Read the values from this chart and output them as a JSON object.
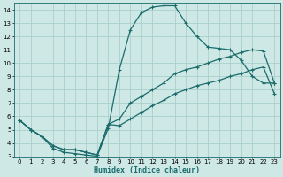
{
  "xlabel": "Humidex (Indice chaleur)",
  "xlim": [
    -0.5,
    23.5
  ],
  "ylim": [
    3,
    14.5
  ],
  "xticks": [
    0,
    1,
    2,
    3,
    4,
    5,
    6,
    7,
    8,
    9,
    10,
    11,
    12,
    13,
    14,
    15,
    16,
    17,
    18,
    19,
    20,
    21,
    22,
    23
  ],
  "yticks": [
    3,
    4,
    5,
    6,
    7,
    8,
    9,
    10,
    11,
    12,
    13,
    14
  ],
  "bg_color": "#cde8e5",
  "grid_color": "#aacfcb",
  "line_color": "#1a6b6b",
  "line1_x": [
    0,
    1,
    2,
    3,
    4,
    5,
    6,
    7,
    8,
    9,
    10,
    11,
    12,
    13,
    14,
    15,
    16,
    17,
    18,
    19,
    20,
    21,
    22,
    23
  ],
  "line1_y": [
    5.7,
    5.0,
    4.5,
    3.6,
    3.3,
    3.2,
    3.1,
    3.0,
    5.1,
    9.5,
    12.5,
    13.8,
    14.2,
    14.3,
    14.3,
    13.0,
    12.0,
    11.2,
    11.1,
    11.0,
    10.2,
    9.0,
    8.5,
    8.5
  ],
  "line2_x": [
    0,
    1,
    2,
    3,
    4,
    5,
    6,
    7,
    8,
    9,
    10,
    11,
    12,
    13,
    14,
    15,
    16,
    17,
    18,
    19,
    20,
    21,
    22,
    23
  ],
  "line2_y": [
    5.7,
    5.0,
    4.5,
    3.8,
    3.5,
    3.5,
    3.3,
    3.1,
    5.4,
    5.8,
    7.0,
    7.5,
    8.0,
    8.5,
    9.2,
    9.5,
    9.7,
    10.0,
    10.3,
    10.5,
    10.8,
    11.0,
    10.9,
    8.5
  ],
  "line3_x": [
    0,
    1,
    2,
    3,
    4,
    5,
    6,
    7,
    8,
    9,
    10,
    11,
    12,
    13,
    14,
    15,
    16,
    17,
    18,
    19,
    20,
    21,
    22,
    23
  ],
  "line3_y": [
    5.7,
    5.0,
    4.5,
    3.8,
    3.5,
    3.5,
    3.3,
    3.1,
    5.4,
    5.3,
    5.8,
    6.3,
    6.8,
    7.2,
    7.7,
    8.0,
    8.3,
    8.5,
    8.7,
    9.0,
    9.2,
    9.5,
    9.7,
    7.7
  ]
}
